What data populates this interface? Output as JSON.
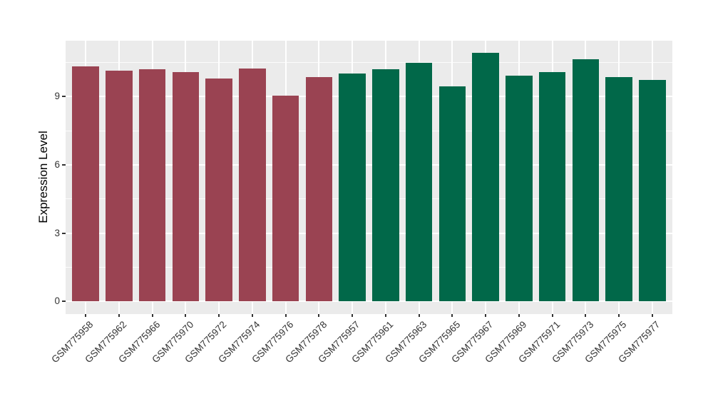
{
  "figure": {
    "y_axis_title": "Expression Level"
  },
  "chart_data": {
    "type": "bar",
    "title": "",
    "xlabel": "",
    "ylabel": "Expression Level",
    "ylim": [
      -0.55,
      11.45
    ],
    "yticks": [
      0,
      3,
      6,
      9
    ],
    "minor_yticks": [
      1.5,
      4.5,
      7.5,
      10.5
    ],
    "grid": "on",
    "legend_position": "none",
    "categories": [
      "GSM775958",
      "GSM775962",
      "GSM775966",
      "GSM775970",
      "GSM775972",
      "GSM775974",
      "GSM775976",
      "GSM775978",
      "GSM775957",
      "GSM775961",
      "GSM775963",
      "GSM775965",
      "GSM775967",
      "GSM775969",
      "GSM775971",
      "GSM775973",
      "GSM775975",
      "GSM775977"
    ],
    "values": [
      10.33,
      10.12,
      10.21,
      10.08,
      9.8,
      10.24,
      9.03,
      9.84,
      10.0,
      10.19,
      10.49,
      9.45,
      10.92,
      9.93,
      10.08,
      10.64,
      9.86,
      9.72
    ],
    "groups": [
      0,
      0,
      0,
      0,
      0,
      0,
      0,
      0,
      1,
      1,
      1,
      1,
      1,
      1,
      1,
      1,
      1,
      1
    ],
    "group_names": [
      "red-group",
      "green-group"
    ],
    "group_colors": [
      "#9A4352",
      "#016849"
    ]
  },
  "colors": {
    "page_background": "#FFFFFF",
    "panel_background": "#EBEBEB",
    "grid": "#FFFFFF",
    "bar_red": "#9A4352",
    "bar_green": "#016849",
    "axis_text": "#333333",
    "axis_title": "#000000"
  }
}
